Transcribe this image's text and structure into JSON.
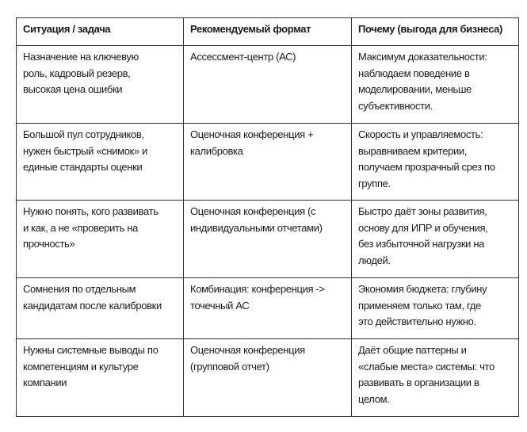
{
  "table": {
    "headers": [
      "Ситуация / задача",
      "Рекомендуемый формат",
      "Почему (выгода для бизнеса)"
    ],
    "rows": [
      [
        "Назначение на ключевую\nроль, кадровый резерв,\nвысокая цена ошибки",
        "Ассессмент-центр (АС)",
        "Максимум доказательности:\nнаблюдаем поведение в\nмоделировании, меньше\nсубъективности."
      ],
      [
        "Большой пул сотрудников,\nнужен быстрый «снимок» и\nединые стандарты оценки",
        "Оценочная конференция +\nкалибровка",
        "Скорость и управляемость:\nвыравниваем критерии,\nполучаем прозрачный срез по\nгруппе."
      ],
      [
        "Нужно понять, кого развивать\nи как, а не «проверить на\nпрочность»",
        "Оценочная конференция (с\nиндивидуальными отчетами)",
        "Быстро даёт зоны развития,\nоснову для ИПР и обучения,\nбез избыточной нагрузки на\nлюдей."
      ],
      [
        "Сомнения по отдельным\nкандидатам после калибровки",
        "Комбинация: конференция ->\nточечный АС",
        "Экономия бюджета: глубину\nприменяем только там, где\nэто действительно нужно."
      ],
      [
        "Нужны системные выводы по\nкомпетенциям и культуре\nкомпании",
        "Оценочная конференция\n(групповой отчет)",
        "Даёт общие паттерны и\n«слабые места» системы: что\nразвивать в организации в\nцелом."
      ]
    ]
  }
}
